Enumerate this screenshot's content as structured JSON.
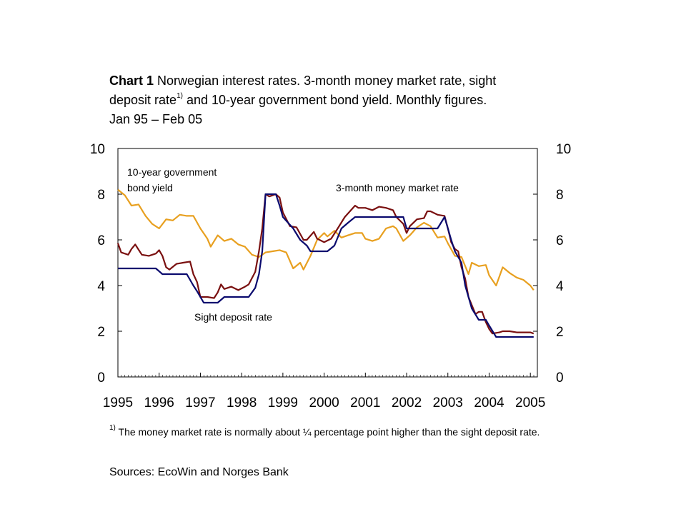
{
  "title": {
    "label": "Chart 1",
    "text_line1": "Norwegian interest rates. 3-month money market rate, sight",
    "text_line2a": "deposit rate",
    "superscript": "1)",
    "text_line2b": " and 10-year government bond yield. Monthly figures.",
    "text_line3": "Jan 95 – Feb 05"
  },
  "footnote": {
    "marker": "1)",
    "text": " The money market rate is normally about ¼ percentage point higher than the sight deposit rate."
  },
  "sources": "Sources: EcoWin and Norges Bank",
  "colors": {
    "bond": "#E8A020",
    "money": "#7A1010",
    "sight": "#0A0A6E"
  },
  "chart_data": {
    "type": "line",
    "x_ticks": [
      "1995",
      "1996",
      "1997",
      "1998",
      "1999",
      "2000",
      "2001",
      "2002",
      "2003",
      "2004",
      "2005"
    ],
    "ylim": [
      0,
      10
    ],
    "y_ticks_left": [
      "0",
      "2",
      "4",
      "6",
      "8",
      "10"
    ],
    "y_ticks_right": [
      "0",
      "2",
      "4",
      "6",
      "8",
      "10"
    ],
    "annotations": {
      "bond_line1": "10-year government",
      "bond_line2": "bond yield",
      "money": "3-month money market rate",
      "sight": "Sight deposit rate"
    },
    "series": [
      {
        "name": "10-year government bond yield",
        "points": [
          [
            1995.0,
            8.2
          ],
          [
            1995.17,
            7.95
          ],
          [
            1995.33,
            7.5
          ],
          [
            1995.5,
            7.55
          ],
          [
            1995.67,
            7.05
          ],
          [
            1995.83,
            6.7
          ],
          [
            1996.0,
            6.5
          ],
          [
            1996.17,
            6.9
          ],
          [
            1996.33,
            6.85
          ],
          [
            1996.5,
            7.1
          ],
          [
            1996.67,
            7.05
          ],
          [
            1996.83,
            7.05
          ],
          [
            1997.0,
            6.5
          ],
          [
            1997.17,
            6.05
          ],
          [
            1997.25,
            5.7
          ],
          [
            1997.42,
            6.2
          ],
          [
            1997.58,
            5.95
          ],
          [
            1997.75,
            6.05
          ],
          [
            1997.92,
            5.8
          ],
          [
            1998.08,
            5.7
          ],
          [
            1998.25,
            5.35
          ],
          [
            1998.42,
            5.25
          ],
          [
            1998.58,
            5.45
          ],
          [
            1998.75,
            5.5
          ],
          [
            1998.92,
            5.55
          ],
          [
            1999.08,
            5.45
          ],
          [
            1999.25,
            4.75
          ],
          [
            1999.42,
            5.0
          ],
          [
            1999.5,
            4.7
          ],
          [
            1999.67,
            5.3
          ],
          [
            1999.83,
            6.0
          ],
          [
            2000.0,
            6.3
          ],
          [
            2000.08,
            6.15
          ],
          [
            2000.25,
            6.4
          ],
          [
            2000.42,
            6.1
          ],
          [
            2000.58,
            6.2
          ],
          [
            2000.75,
            6.3
          ],
          [
            2000.92,
            6.3
          ],
          [
            2001.0,
            6.05
          ],
          [
            2001.17,
            5.95
          ],
          [
            2001.33,
            6.05
          ],
          [
            2001.5,
            6.5
          ],
          [
            2001.67,
            6.6
          ],
          [
            2001.75,
            6.5
          ],
          [
            2001.92,
            5.95
          ],
          [
            2002.08,
            6.2
          ],
          [
            2002.25,
            6.55
          ],
          [
            2002.42,
            6.75
          ],
          [
            2002.58,
            6.6
          ],
          [
            2002.75,
            6.1
          ],
          [
            2002.92,
            6.15
          ],
          [
            2003.0,
            5.85
          ],
          [
            2003.17,
            5.3
          ],
          [
            2003.33,
            5.25
          ],
          [
            2003.5,
            4.5
          ],
          [
            2003.58,
            5.0
          ],
          [
            2003.75,
            4.85
          ],
          [
            2003.92,
            4.9
          ],
          [
            2004.0,
            4.45
          ],
          [
            2004.17,
            4.0
          ],
          [
            2004.33,
            4.8
          ],
          [
            2004.5,
            4.55
          ],
          [
            2004.67,
            4.35
          ],
          [
            2004.83,
            4.25
          ],
          [
            2005.0,
            4.0
          ],
          [
            2005.08,
            3.8
          ]
        ]
      },
      {
        "name": "3-month money market rate",
        "points": [
          [
            1995.0,
            5.85
          ],
          [
            1995.08,
            5.45
          ],
          [
            1995.25,
            5.35
          ],
          [
            1995.33,
            5.6
          ],
          [
            1995.42,
            5.8
          ],
          [
            1995.58,
            5.35
          ],
          [
            1995.75,
            5.3
          ],
          [
            1995.92,
            5.4
          ],
          [
            1996.0,
            5.55
          ],
          [
            1996.08,
            5.3
          ],
          [
            1996.17,
            4.8
          ],
          [
            1996.25,
            4.7
          ],
          [
            1996.42,
            4.95
          ],
          [
            1996.58,
            5.0
          ],
          [
            1996.75,
            5.05
          ],
          [
            1996.83,
            4.5
          ],
          [
            1996.92,
            4.15
          ],
          [
            1997.0,
            3.5
          ],
          [
            1997.17,
            3.5
          ],
          [
            1997.33,
            3.45
          ],
          [
            1997.42,
            3.7
          ],
          [
            1997.5,
            4.05
          ],
          [
            1997.58,
            3.85
          ],
          [
            1997.75,
            3.95
          ],
          [
            1997.92,
            3.8
          ],
          [
            1998.08,
            3.95
          ],
          [
            1998.17,
            4.05
          ],
          [
            1998.33,
            4.6
          ],
          [
            1998.42,
            5.5
          ],
          [
            1998.5,
            6.5
          ],
          [
            1998.58,
            8.0
          ],
          [
            1998.67,
            7.9
          ],
          [
            1998.83,
            8.0
          ],
          [
            1998.92,
            7.85
          ],
          [
            1999.0,
            7.2
          ],
          [
            1999.17,
            6.6
          ],
          [
            1999.33,
            6.55
          ],
          [
            1999.5,
            6.0
          ],
          [
            1999.58,
            6.0
          ],
          [
            1999.75,
            6.35
          ],
          [
            1999.83,
            6.05
          ],
          [
            2000.0,
            5.9
          ],
          [
            2000.17,
            6.05
          ],
          [
            2000.33,
            6.5
          ],
          [
            2000.5,
            7.0
          ],
          [
            2000.75,
            7.5
          ],
          [
            2000.83,
            7.4
          ],
          [
            2001.0,
            7.4
          ],
          [
            2001.17,
            7.3
          ],
          [
            2001.33,
            7.45
          ],
          [
            2001.5,
            7.4
          ],
          [
            2001.67,
            7.3
          ],
          [
            2001.75,
            7.0
          ],
          [
            2001.92,
            6.7
          ],
          [
            2002.0,
            6.3
          ],
          [
            2002.08,
            6.6
          ],
          [
            2002.25,
            6.9
          ],
          [
            2002.42,
            6.95
          ],
          [
            2002.5,
            7.25
          ],
          [
            2002.58,
            7.25
          ],
          [
            2002.75,
            7.1
          ],
          [
            2002.92,
            7.05
          ],
          [
            2003.0,
            6.5
          ],
          [
            2003.08,
            5.9
          ],
          [
            2003.17,
            5.6
          ],
          [
            2003.25,
            5.5
          ],
          [
            2003.33,
            4.8
          ],
          [
            2003.42,
            4.3
          ],
          [
            2003.5,
            3.5
          ],
          [
            2003.67,
            2.75
          ],
          [
            2003.75,
            2.85
          ],
          [
            2003.83,
            2.85
          ],
          [
            2003.92,
            2.4
          ],
          [
            2004.0,
            2.1
          ],
          [
            2004.08,
            1.9
          ],
          [
            2004.25,
            1.95
          ],
          [
            2004.33,
            2.0
          ],
          [
            2004.5,
            2.0
          ],
          [
            2004.67,
            1.95
          ],
          [
            2004.83,
            1.95
          ],
          [
            2005.0,
            1.95
          ],
          [
            2005.08,
            1.9
          ]
        ]
      },
      {
        "name": "Sight deposit rate",
        "points": [
          [
            1995.0,
            4.75
          ],
          [
            1995.92,
            4.75
          ],
          [
            1996.08,
            4.5
          ],
          [
            1996.67,
            4.5
          ],
          [
            1996.83,
            4.0
          ],
          [
            1996.92,
            3.75
          ],
          [
            1997.0,
            3.5
          ],
          [
            1997.08,
            3.25
          ],
          [
            1997.42,
            3.25
          ],
          [
            1997.58,
            3.5
          ],
          [
            1998.08,
            3.5
          ],
          [
            1998.17,
            3.5
          ],
          [
            1998.33,
            3.9
          ],
          [
            1998.42,
            4.5
          ],
          [
            1998.5,
            5.5
          ],
          [
            1998.58,
            8.0
          ],
          [
            1998.83,
            8.0
          ],
          [
            1998.92,
            7.5
          ],
          [
            1999.0,
            7.0
          ],
          [
            1999.25,
            6.5
          ],
          [
            1999.42,
            6.0
          ],
          [
            1999.58,
            5.75
          ],
          [
            1999.67,
            5.5
          ],
          [
            2000.08,
            5.5
          ],
          [
            2000.25,
            5.75
          ],
          [
            2000.42,
            6.5
          ],
          [
            2000.58,
            6.75
          ],
          [
            2000.75,
            7.0
          ],
          [
            2001.92,
            7.0
          ],
          [
            2002.0,
            6.5
          ],
          [
            2002.75,
            6.5
          ],
          [
            2002.92,
            7.0
          ],
          [
            2003.0,
            6.5
          ],
          [
            2003.08,
            6.0
          ],
          [
            2003.17,
            5.5
          ],
          [
            2003.33,
            5.0
          ],
          [
            2003.42,
            4.0
          ],
          [
            2003.58,
            3.0
          ],
          [
            2003.75,
            2.5
          ],
          [
            2003.92,
            2.5
          ],
          [
            2004.0,
            2.25
          ],
          [
            2004.17,
            1.75
          ],
          [
            2005.08,
            1.75
          ]
        ]
      }
    ]
  }
}
